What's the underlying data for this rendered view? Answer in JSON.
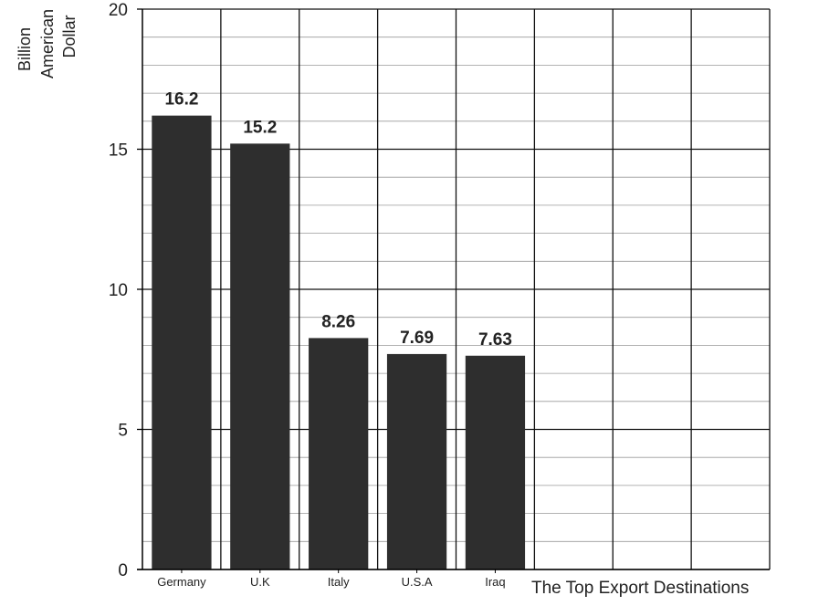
{
  "chart_data": {
    "type": "bar",
    "categories": [
      "Germany",
      "U.K",
      "Italy",
      "U.S.A",
      "Iraq"
    ],
    "values": [
      16.2,
      15.2,
      8.26,
      7.69,
      7.63
    ],
    "data_labels": [
      "16.2",
      "15.2",
      "8.26",
      "7.69",
      "7.63"
    ],
    "ylabel_lines": [
      "Billion",
      "American",
      "Dollar"
    ],
    "xlabel": "The Top Export Destinations",
    "ylim": [
      0,
      20
    ],
    "y_ticks": [
      0,
      5,
      10,
      15,
      20
    ],
    "y_minor_step": 1,
    "column_slots": 8,
    "grid": true,
    "bar_color": "#2e2e2e"
  }
}
